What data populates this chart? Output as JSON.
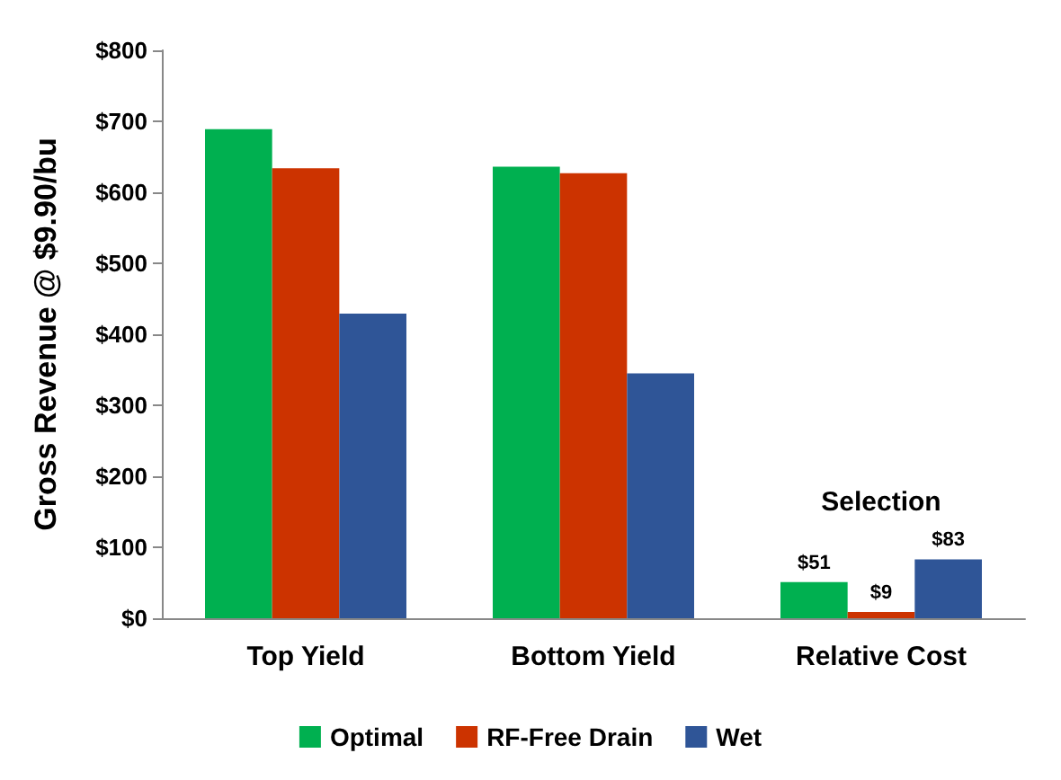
{
  "chart_data": {
    "type": "bar",
    "ylabel": "Gross Revenue @ $9.90/bu",
    "categories": [
      "Top Yield",
      "Bottom Yield",
      "Relative Cost"
    ],
    "series": [
      {
        "name": "Optimal",
        "color": "#00b050",
        "values": [
          689,
          636,
          51
        ],
        "value_labels": [
          null,
          null,
          "$51"
        ]
      },
      {
        "name": "RF-Free Drain",
        "color": "#cc3300",
        "values": [
          634,
          627,
          9
        ],
        "value_labels": [
          null,
          null,
          "$9"
        ]
      },
      {
        "name": "Wet",
        "color": "#2f5597",
        "values": [
          429,
          345,
          83
        ],
        "value_labels": [
          null,
          null,
          "$83"
        ]
      }
    ],
    "ylim": [
      0,
      800
    ],
    "yticks": [
      {
        "value": 0,
        "label": "$0"
      },
      {
        "value": 100,
        "label": "$100"
      },
      {
        "value": 200,
        "label": "$200"
      },
      {
        "value": 300,
        "label": "$300"
      },
      {
        "value": 400,
        "label": "$400"
      },
      {
        "value": 500,
        "label": "$500"
      },
      {
        "value": 600,
        "label": "$600"
      },
      {
        "value": 700,
        "label": "$700"
      },
      {
        "value": 800,
        "label": "$800"
      }
    ],
    "annotations": [
      "Selection"
    ],
    "grid": false,
    "legend": "bottom"
  }
}
